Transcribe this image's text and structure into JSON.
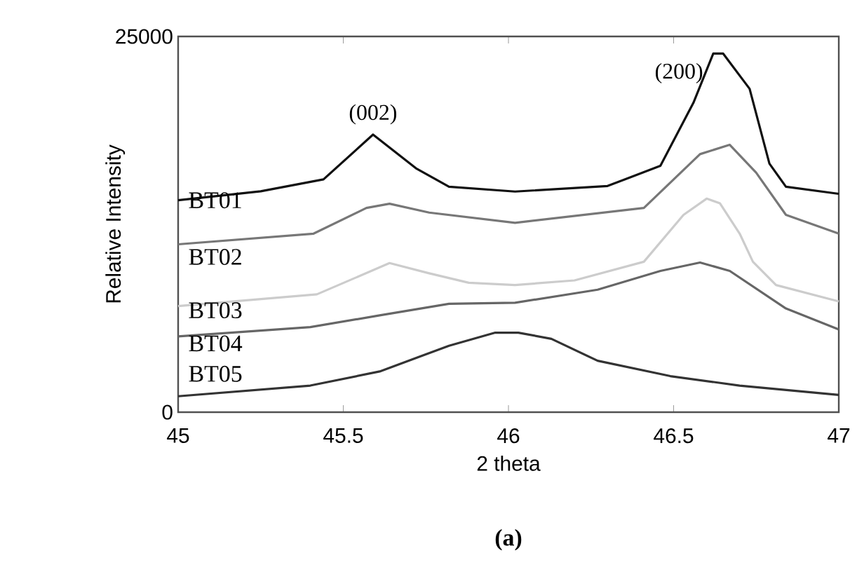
{
  "chart_data": {
    "type": "line",
    "xlabel": "2 theta",
    "ylabel": "Relative Intensity",
    "xlim": [
      45,
      47
    ],
    "ylim": [
      0,
      25000
    ],
    "xticks": [
      45,
      45.5,
      46,
      46.5,
      47
    ],
    "yticks": [
      0,
      25000
    ],
    "grid": false,
    "legend": false,
    "marker": "none",
    "line_style": "solid",
    "annotations": [
      {
        "text": "(002)",
        "x": 45.59,
        "y": 18470
      },
      {
        "text": "(200)",
        "x": 46.62,
        "y": 23860
      },
      "(a)"
    ],
    "series": [
      {
        "name": "BT01",
        "color": "#111111",
        "x": [
          45,
          45.25,
          45.44,
          45.59,
          45.72,
          45.82,
          46.02,
          46.3,
          46.46,
          46.56,
          46.62,
          46.65,
          46.73,
          46.79,
          46.84,
          47
        ],
        "values": [
          14100,
          14700,
          15490,
          18470,
          16230,
          15000,
          14680,
          15050,
          16390,
          20590,
          23860,
          23860,
          21520,
          16540,
          15000,
          14530
        ]
      },
      {
        "name": "BT02",
        "color": "#777777",
        "x": [
          45,
          45.41,
          45.57,
          45.64,
          45.76,
          46.02,
          46.41,
          46.58,
          46.67,
          46.75,
          46.84,
          47
        ],
        "values": [
          11170,
          11880,
          13590,
          13870,
          13280,
          12600,
          13590,
          17170,
          17790,
          15930,
          13130,
          11880
        ]
      },
      {
        "name": "BT03",
        "color": "#cccccc",
        "x": [
          45,
          45.42,
          45.64,
          45.76,
          45.88,
          46.02,
          46.2,
          46.41,
          46.53,
          46.6,
          46.64,
          46.7,
          46.74,
          46.81,
          47
        ],
        "values": [
          7060,
          7840,
          9920,
          9240,
          8610,
          8460,
          8770,
          10010,
          13130,
          14210,
          13900,
          11880,
          10010,
          8460,
          7370
        ]
      },
      {
        "name": "BT04",
        "color": "#666666",
        "x": [
          45,
          45.4,
          45.61,
          45.82,
          46.02,
          46.27,
          46.46,
          46.58,
          46.67,
          46.84,
          47
        ],
        "values": [
          5040,
          5660,
          6440,
          7210,
          7280,
          8150,
          9400,
          9960,
          9400,
          6900,
          5500
        ]
      },
      {
        "name": "BT05",
        "color": "#333333",
        "x": [
          45,
          45.4,
          45.61,
          45.82,
          45.96,
          46.03,
          46.13,
          46.27,
          46.49,
          46.7,
          47
        ],
        "values": [
          1060,
          1770,
          2710,
          4420,
          5290,
          5290,
          4880,
          3420,
          2400,
          1770,
          1150
        ]
      }
    ]
  }
}
